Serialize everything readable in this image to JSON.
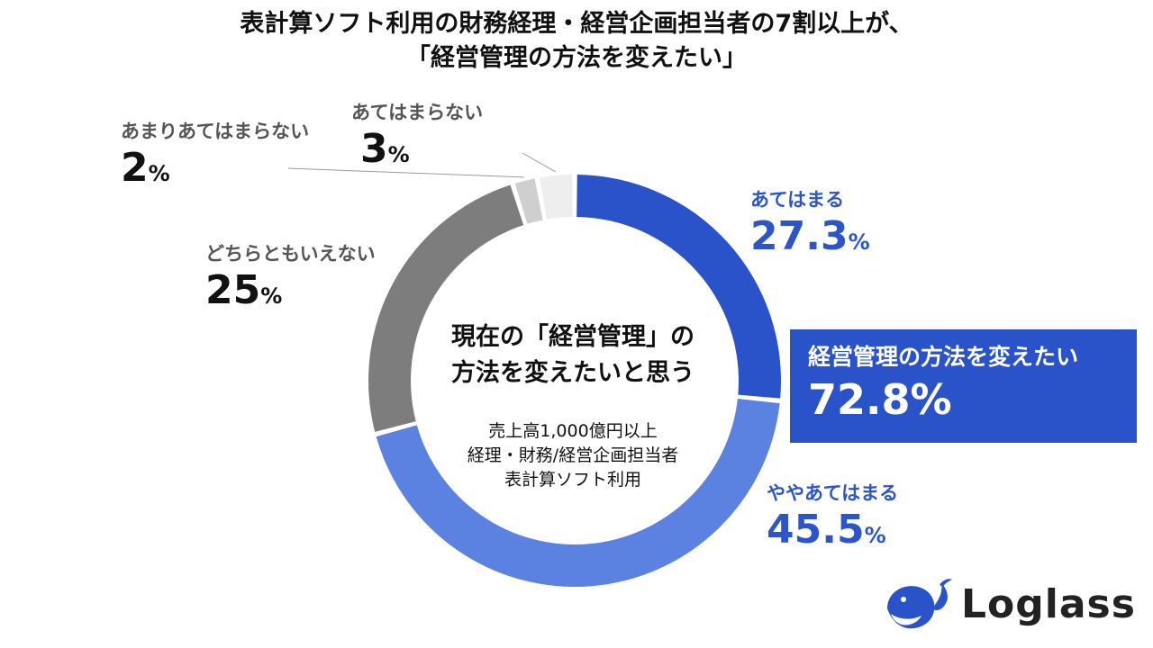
{
  "title": {
    "line1": "表計算ソフト利用の財務経理・経営企画担当者の7割以上が、",
    "line2": "「経営管理の方法を変えたい」"
  },
  "center": {
    "main_line1": "現在の「経営管理」の",
    "main_line2": "方法を変えたいと思う",
    "sub_line1": "売上高1,000億円以上",
    "sub_line2": "経理・財務/経営企画担当者",
    "sub_line3": "表計算ソフト利用"
  },
  "summary": {
    "label": "経営管理の方法を変えたい",
    "value": "72.8%"
  },
  "logo": {
    "text": "Loglass"
  },
  "chart_data": {
    "type": "pie",
    "subtype": "donut",
    "title": "表計算ソフト利用の財務経理・経営企画担当者の7割以上が、「経営管理の方法を変えたい」",
    "unit": "%",
    "slices": [
      {
        "label": "あてはまる",
        "value": 27.3,
        "value_text": "27.3",
        "color": "#2a52c9"
      },
      {
        "label": "ややあてはまる",
        "value": 45.5,
        "value_text": "45.5",
        "color": "#5b82e0"
      },
      {
        "label": "どちらともいえない",
        "value": 25,
        "value_text": "25",
        "color": "#7d7d7d"
      },
      {
        "label": "あまりあてはまらない",
        "value": 2,
        "value_text": "2",
        "color": "#cfcfcf"
      },
      {
        "label": "あてはまらない",
        "value": 3,
        "value_text": "3",
        "color": "#eeeeee"
      }
    ]
  }
}
